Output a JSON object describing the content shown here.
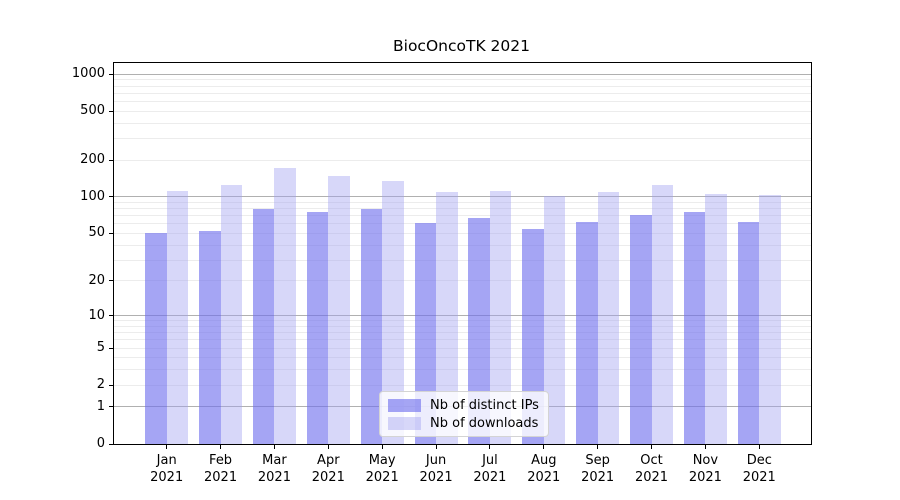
{
  "chart_data": {
    "type": "bar",
    "title": "BiocOncoTK 2021",
    "categories": [
      "Jan",
      "Feb",
      "Mar",
      "Apr",
      "May",
      "Jun",
      "Jul",
      "Aug",
      "Sep",
      "Oct",
      "Nov",
      "Dec"
    ],
    "year_label": "2021",
    "series": [
      {
        "name": "Nb of distinct IPs",
        "color": "rgba(110,110,238,0.62)",
        "values": [
          50,
          52,
          79,
          75,
          80,
          61,
          67,
          54,
          62,
          71,
          75,
          62
        ]
      },
      {
        "name": "Nb of downloads",
        "color": "rgba(160,160,240,0.42)",
        "values": [
          112,
          126,
          172,
          148,
          135,
          109,
          111,
          102,
          110,
          125,
          106,
          103
        ]
      }
    ],
    "y_scale": "log10(1+x)",
    "y_ticks": [
      0,
      1,
      2,
      5,
      10,
      20,
      50,
      100,
      200,
      500,
      1000
    ],
    "y_major_gridlines": [
      1,
      10,
      100,
      1000
    ],
    "ylim": [
      0,
      1230
    ],
    "grid": true,
    "legend_position": "lower center"
  },
  "colors": {
    "minor_grid": "#ececec",
    "major_grid": "#b0b0b0",
    "axis": "#000000",
    "text": "#000000",
    "legend_bg": "rgba(255,255,255,0.8)",
    "legend_border": "#d4d4d4"
  }
}
